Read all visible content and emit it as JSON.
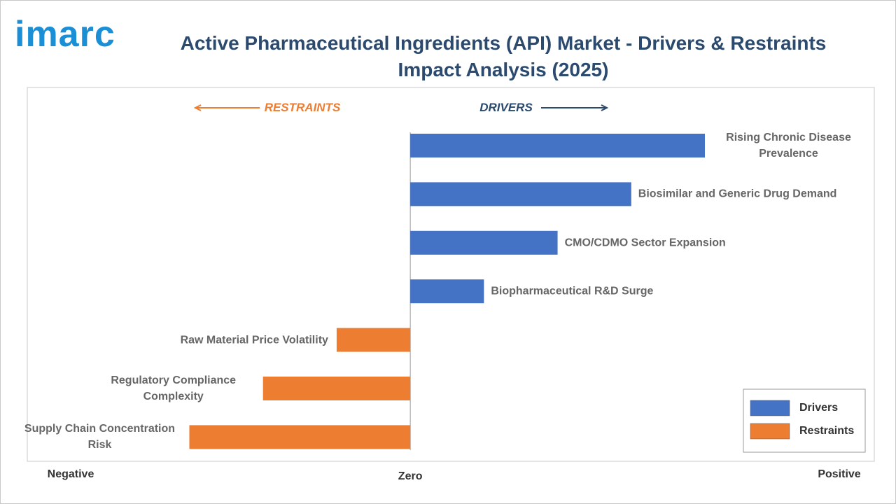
{
  "logo": "imarc",
  "chart_data": {
    "type": "diverging-bar",
    "title": "Active Pharmaceutical Ingredients (API) Market - Drivers & Restraints Impact Analysis (2025)",
    "annotations": {
      "restraints": "RESTRAINTS",
      "drivers": "DRIVERS"
    },
    "axis_labels": {
      "negative": "Negative",
      "zero": "Zero",
      "positive": "Positive"
    },
    "categories": [
      "Rising Chronic Disease Prevalence",
      "Biosimilar and Generic Drug Demand",
      "CMO/CDMO Sector Expansion",
      "Biopharmaceutical R&D Surge",
      "Raw Material Price Volatility",
      "Regulatory Compliance Complexity",
      "Supply Chain Concentration Risk"
    ],
    "series": [
      {
        "name": "Drivers",
        "color": "#4472c4",
        "values": [
          4,
          3,
          2,
          1,
          null,
          null,
          null
        ]
      },
      {
        "name": "Restraints",
        "color": "#ed7d31",
        "values": [
          null,
          null,
          null,
          null,
          -1,
          -2,
          -3
        ]
      }
    ],
    "xlim": [
      -5.2,
      6.3
    ],
    "legend": "bottom-right"
  }
}
